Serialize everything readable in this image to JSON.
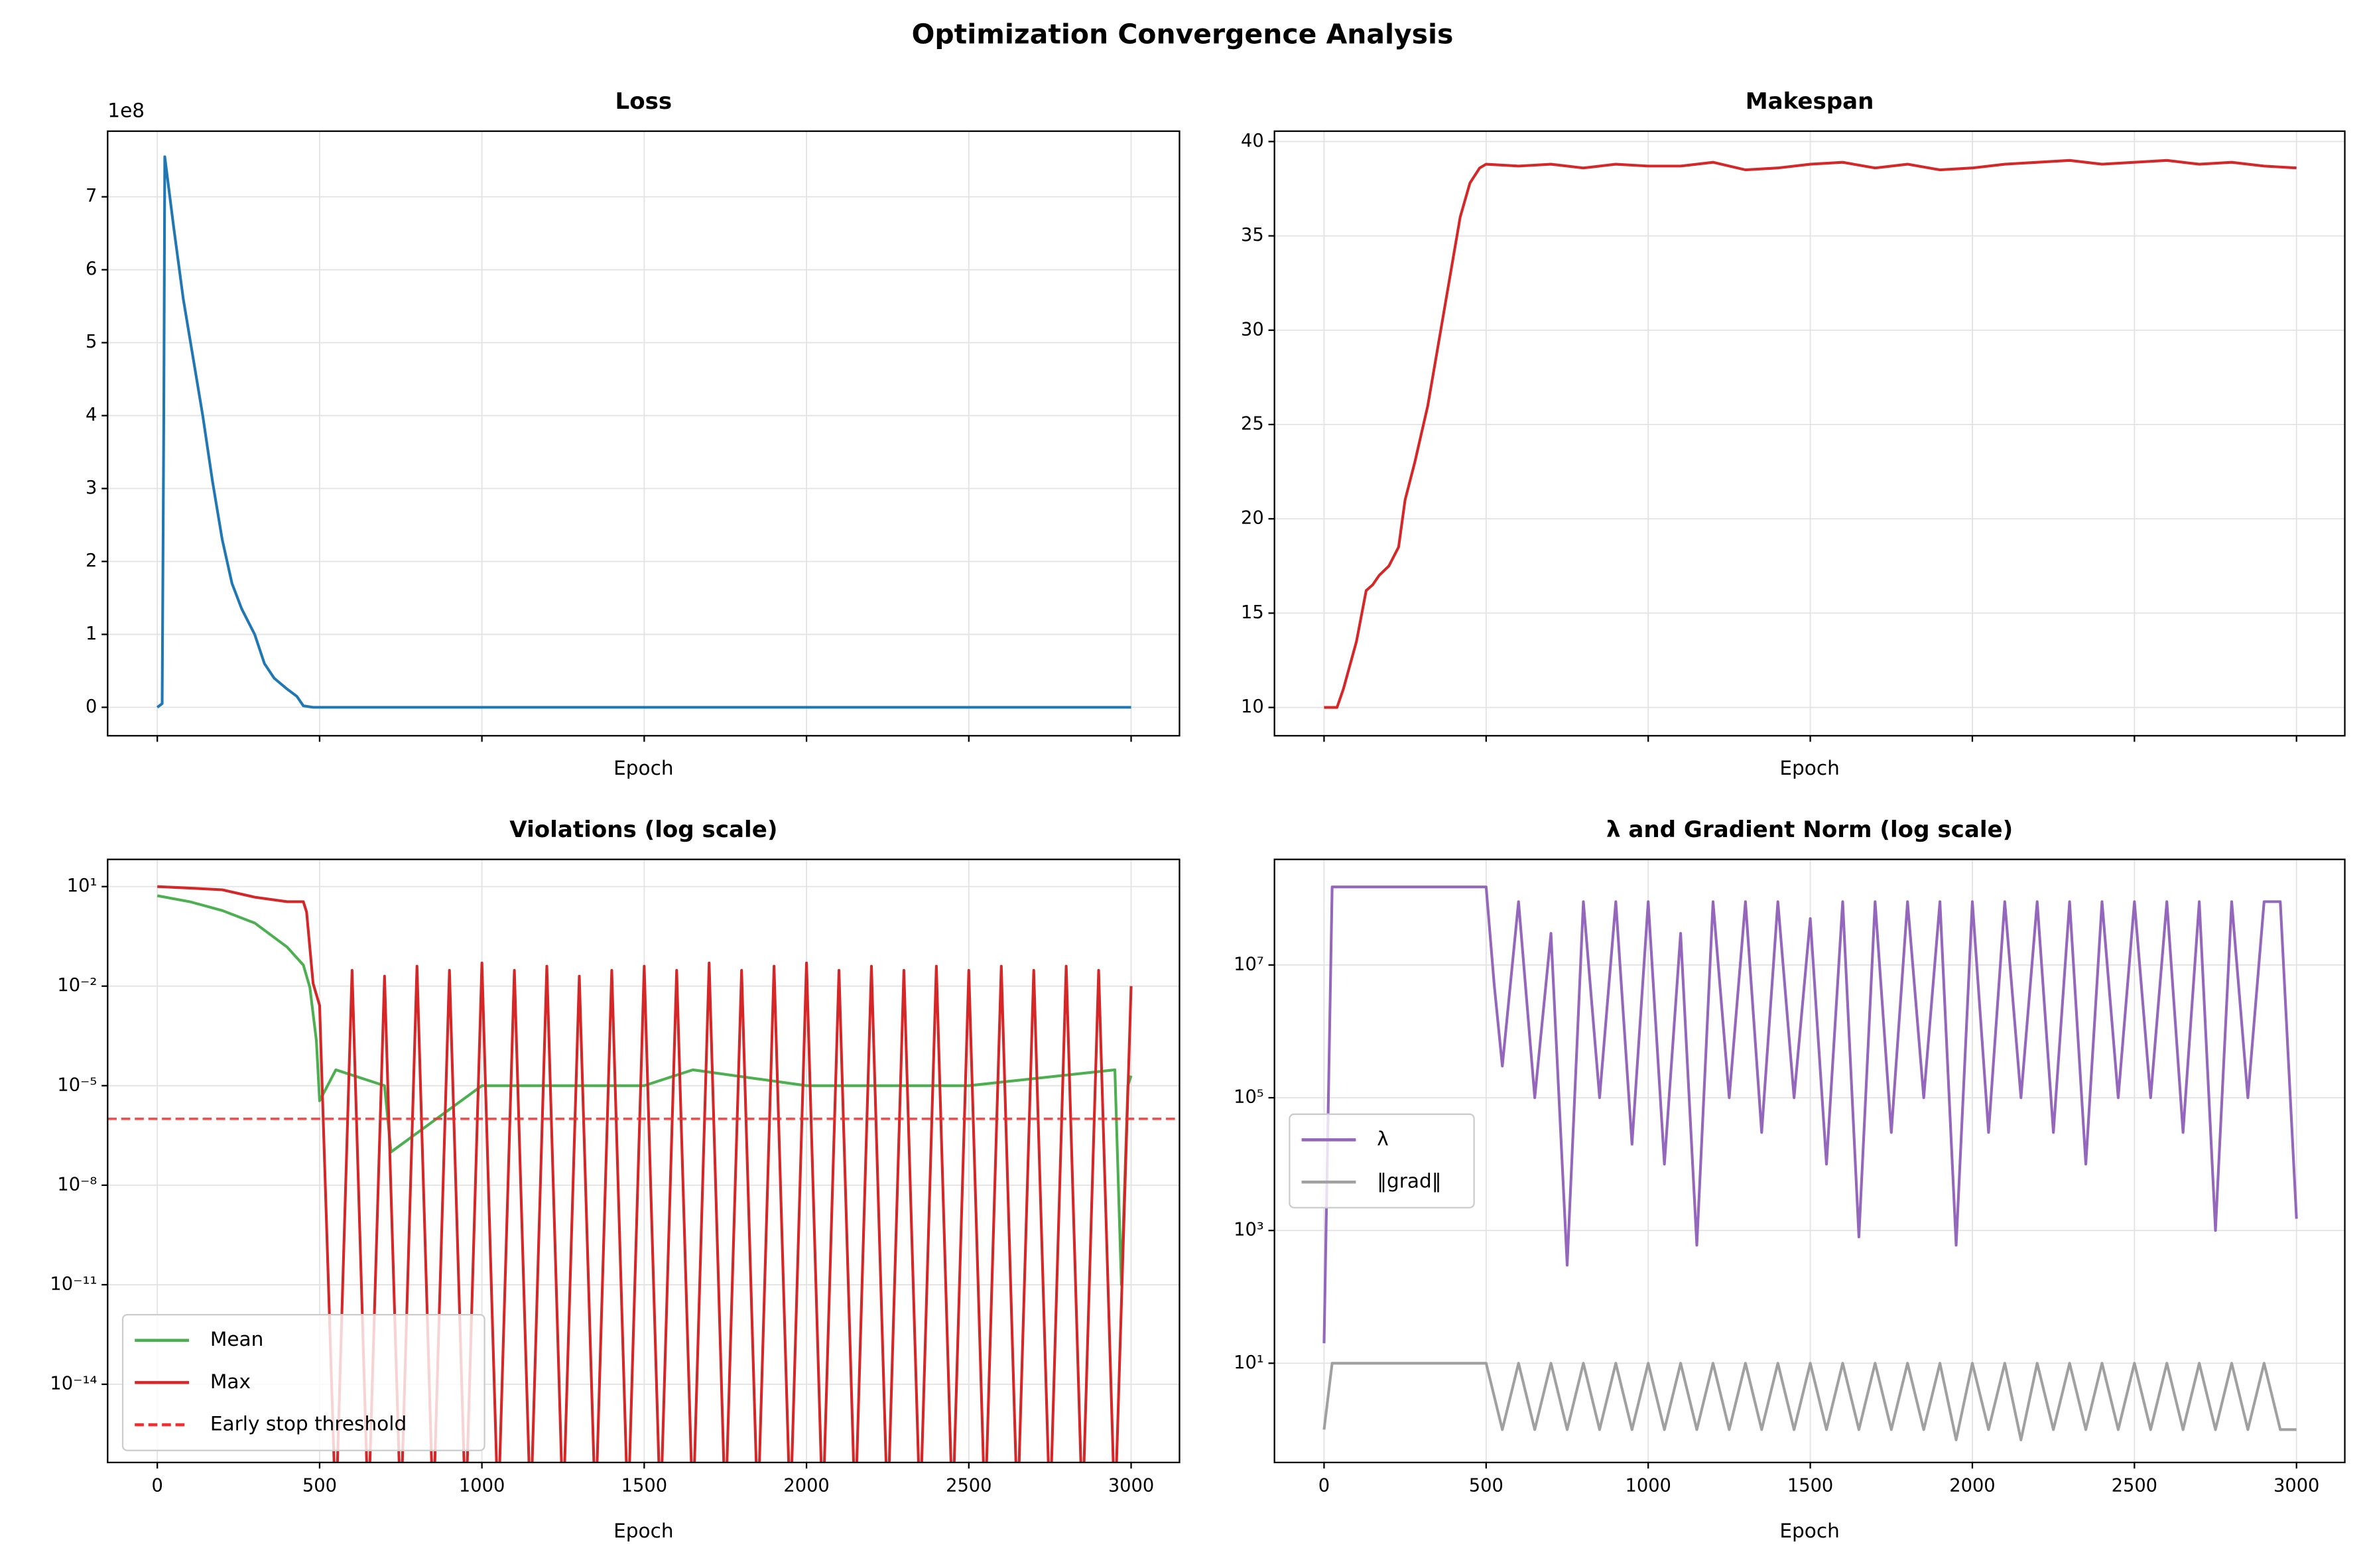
{
  "title": "Optimization Convergence Analysis",
  "chart_data": [
    {
      "type": "line",
      "title": "Loss",
      "xlabel": "Epoch",
      "y_offset_label": "1e8",
      "xlim": [
        -153,
        3149
      ],
      "xticks": [
        0,
        500,
        1000,
        1500,
        2000,
        2500,
        3000
      ],
      "show_xticklabels": false,
      "ylim": [
        -0.39,
        7.9
      ],
      "yticks": [
        0,
        1,
        2,
        3,
        4,
        5,
        6,
        7
      ],
      "grid": true,
      "series": [
        {
          "color": "#1f77b4",
          "x": [
            0,
            15,
            20,
            23,
            50,
            80,
            110,
            140,
            170,
            200,
            230,
            260,
            300,
            330,
            360,
            400,
            430,
            450,
            480,
            3000
          ],
          "values": [
            0,
            0.05,
            4,
            7.55,
            6.6,
            5.6,
            4.8,
            4.0,
            3.1,
            2.3,
            1.7,
            1.35,
            1.0,
            0.6,
            0.4,
            0.25,
            0.15,
            0.02,
            0,
            0
          ]
        }
      ]
    },
    {
      "type": "line",
      "title": "Makespan",
      "xlabel": "Epoch",
      "xlim": [
        -153,
        3149
      ],
      "xticks": [
        0,
        500,
        1000,
        1500,
        2000,
        2500,
        3000
      ],
      "show_xticklabels": false,
      "ylim": [
        8.5,
        40.55
      ],
      "yticks": [
        10,
        15,
        20,
        25,
        30,
        35,
        40
      ],
      "grid": true,
      "series": [
        {
          "color": "#d62728",
          "x": [
            0,
            40,
            60,
            100,
            130,
            150,
            170,
            200,
            230,
            250,
            280,
            320,
            360,
            390,
            420,
            450,
            480,
            500,
            600,
            700,
            800,
            900,
            1000,
            1100,
            1200,
            1300,
            1400,
            1500,
            1600,
            1700,
            1800,
            1900,
            2000,
            2100,
            2200,
            2300,
            2400,
            2500,
            2600,
            2700,
            2800,
            2900,
            3000
          ],
          "values": [
            10,
            10,
            11,
            13.5,
            16.2,
            16.5,
            17,
            17.5,
            18.5,
            21,
            23,
            26,
            30,
            33,
            36,
            37.8,
            38.6,
            38.8,
            38.7,
            38.8,
            38.6,
            38.8,
            38.7,
            38.7,
            38.9,
            38.5,
            38.6,
            38.8,
            38.9,
            38.6,
            38.8,
            38.5,
            38.6,
            38.8,
            38.9,
            39.0,
            38.8,
            38.9,
            39.0,
            38.8,
            38.9,
            38.7,
            38.6
          ]
        }
      ]
    },
    {
      "type": "line",
      "title": "Violations (log scale)",
      "xlabel": "Epoch",
      "log_y": true,
      "xlim": [
        -153,
        3149
      ],
      "xticks": [
        0,
        500,
        1000,
        1500,
        2000,
        2500,
        3000
      ],
      "show_xticklabels": true,
      "ylim": [
        4.4e-17,
        66
      ],
      "yticks": [
        {
          "value": 10,
          "label": "10¹"
        },
        {
          "value": 0.01,
          "label": "10⁻²"
        },
        {
          "value": 1e-05,
          "label": "10⁻⁵"
        },
        {
          "value": 1e-08,
          "label": "10⁻⁸"
        },
        {
          "value": 1e-11,
          "label": "10⁻¹¹"
        },
        {
          "value": 1e-14,
          "label": "10⁻¹⁴"
        }
      ],
      "grid": true,
      "legend_loc": "lower left",
      "series": [
        {
          "name": "Mean",
          "color": "#4caf50",
          "x": [
            0,
            100,
            200,
            300,
            400,
            450,
            470,
            490,
            500,
            550,
            700,
            720,
            1000,
            1500,
            1650,
            2000,
            2500,
            2950,
            2970,
            2990,
            3000
          ],
          "values": [
            5.3,
            3.5,
            1.9,
            0.8,
            0.15,
            0.043,
            0.0091,
            0.00023,
            3.5e-06,
            3e-05,
            1e-05,
            1e-07,
            1e-05,
            1e-05,
            3e-05,
            1e-05,
            1e-05,
            3e-05,
            1e-11,
            1e-05,
            2e-05
          ]
        },
        {
          "name": "Max",
          "color": "#d62728",
          "x": [
            0,
            100,
            200,
            300,
            400,
            450,
            460,
            480,
            500,
            550,
            600,
            650,
            700,
            750,
            800,
            850,
            900,
            950,
            1000,
            1050,
            1100,
            1150,
            1200,
            1250,
            1300,
            1350,
            1400,
            1450,
            1500,
            1550,
            1600,
            1650,
            1700,
            1750,
            1800,
            1850,
            1900,
            1950,
            2000,
            2050,
            2100,
            2150,
            2200,
            2250,
            2300,
            2350,
            2400,
            2450,
            2500,
            2550,
            2600,
            2650,
            2700,
            2750,
            2800,
            2850,
            2900,
            2950,
            3000
          ],
          "values": [
            10,
            9,
            8,
            4.8,
            3.5,
            3.5,
            1.7,
            0.012,
            0.0026,
            1e-18,
            0.03,
            1e-18,
            0.02,
            1e-18,
            0.04,
            1e-18,
            0.03,
            1e-18,
            0.05,
            1e-18,
            0.03,
            1e-18,
            0.04,
            1e-18,
            0.02,
            1e-18,
            0.03,
            1e-18,
            0.04,
            1e-18,
            0.03,
            1e-18,
            0.05,
            1e-18,
            0.03,
            1e-18,
            0.04,
            1e-18,
            0.05,
            1e-18,
            0.03,
            1e-18,
            0.04,
            1e-18,
            0.03,
            1e-18,
            0.04,
            1e-18,
            0.03,
            1e-18,
            0.04,
            1e-18,
            0.03,
            1e-18,
            0.04,
            1e-18,
            0.03,
            1e-18,
            0.01
          ]
        }
      ],
      "hlines": [
        {
          "name": "Early stop threshold",
          "value": 1e-06,
          "color": "#f03030",
          "dashed": true
        }
      ]
    },
    {
      "type": "line",
      "title": "λ and Gradient Norm (log scale)",
      "xlabel": "Epoch",
      "log_y": true,
      "xlim": [
        -153,
        3149
      ],
      "xticks": [
        0,
        500,
        1000,
        1500,
        2000,
        2500,
        3000
      ],
      "show_xticklabels": true,
      "ylim": [
        0.32,
        390000000.0
      ],
      "yticks": [
        {
          "value": 10,
          "label": "10¹"
        },
        {
          "value": 1000,
          "label": "10³"
        },
        {
          "value": 100000,
          "label": "10⁵"
        },
        {
          "value": 10000000,
          "label": "10⁷"
        }
      ],
      "grid": true,
      "legend_loc": "center left",
      "series": [
        {
          "name": "λ",
          "color": "#9467bd",
          "x": [
            0,
            25,
            500,
            525,
            550,
            600,
            650,
            700,
            750,
            800,
            850,
            900,
            950,
            1000,
            1050,
            1100,
            1150,
            1200,
            1250,
            1300,
            1350,
            1400,
            1450,
            1500,
            1550,
            1600,
            1650,
            1700,
            1750,
            1800,
            1850,
            1900,
            1950,
            2000,
            2050,
            2100,
            2150,
            2200,
            2250,
            2300,
            2350,
            2400,
            2450,
            2500,
            2550,
            2600,
            2650,
            2700,
            2750,
            2800,
            2850,
            2900,
            2950,
            3000
          ],
          "values": [
            20,
            150000000,
            150000000,
            5000000,
            300000,
            90000000,
            100000,
            30000000,
            300,
            90000000,
            100000,
            90000000,
            20000,
            90000000,
            10000,
            30000000,
            600,
            90000000,
            100000,
            90000000,
            30000,
            90000000,
            100000,
            50000000,
            10000,
            90000000,
            800,
            90000000,
            30000,
            90000000,
            100000,
            90000000,
            600,
            90000000,
            30000,
            90000000,
            100000,
            90000000,
            30000,
            90000000,
            10000,
            90000000,
            100000,
            90000000,
            100000,
            90000000,
            30000,
            90000000,
            1000,
            90000000,
            100000,
            90000000,
            90000000,
            1500
          ]
        },
        {
          "name": "‖grad‖",
          "color": "#a0a0a0",
          "x": [
            0,
            25,
            500,
            550,
            600,
            650,
            700,
            750,
            800,
            850,
            900,
            950,
            1000,
            1050,
            1100,
            1150,
            1200,
            1250,
            1300,
            1350,
            1400,
            1450,
            1500,
            1550,
            1600,
            1650,
            1700,
            1750,
            1800,
            1850,
            1900,
            1950,
            2000,
            2050,
            2100,
            2150,
            2200,
            2250,
            2300,
            2350,
            2400,
            2450,
            2500,
            2550,
            2600,
            2650,
            2700,
            2750,
            2800,
            2850,
            2900,
            2950,
            3000
          ],
          "values": [
            1,
            10,
            10,
            1,
            10,
            1,
            10,
            1,
            10,
            1,
            10,
            1,
            10,
            1,
            10,
            1,
            10,
            1,
            10,
            1,
            10,
            1,
            10,
            1,
            10,
            1,
            10,
            1,
            10,
            1,
            10,
            0.7,
            10,
            1,
            10,
            0.7,
            10,
            1,
            10,
            1,
            10,
            1,
            10,
            1,
            10,
            1,
            10,
            1,
            10,
            1,
            10,
            1,
            1
          ]
        }
      ]
    }
  ]
}
